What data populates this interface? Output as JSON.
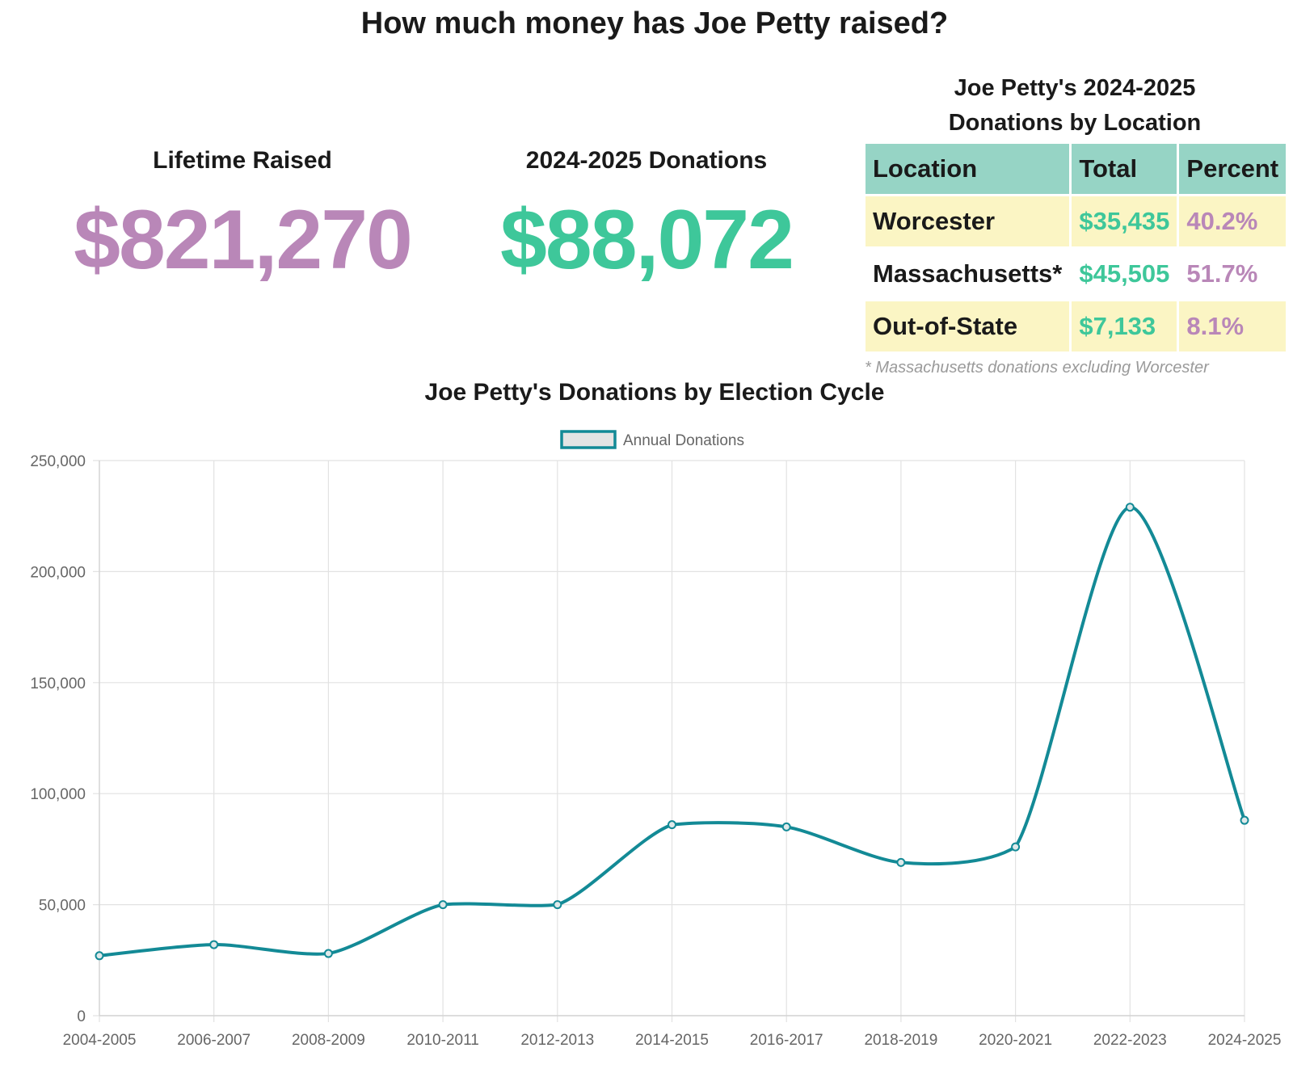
{
  "page": {
    "title": "How much money has Joe Petty raised?"
  },
  "lifetime": {
    "label": "Lifetime Raised",
    "value": "$821,270",
    "color": "#b987b8"
  },
  "current_cycle": {
    "label": "2024-2025 Donations",
    "value": "$88,072",
    "color": "#3ec79a"
  },
  "location_table": {
    "title_line1": "Joe Petty's 2024-2025",
    "title_line2": "Donations by Location",
    "headers": [
      "Location",
      "Total",
      "Percent"
    ],
    "rows": [
      {
        "location": "Worcester",
        "total": "$35,435",
        "percent": "40.2%"
      },
      {
        "location": "Massachusetts*",
        "total": "$45,505",
        "percent": "51.7%"
      },
      {
        "location": "Out-of-State",
        "total": "$7,133",
        "percent": "8.1%"
      }
    ],
    "footnote": "* Massachusetts donations excluding Worcester",
    "header_color": "#96d4c5",
    "row_shade_color": "#fbf5c4"
  },
  "chart_data": {
    "type": "line",
    "title": "Joe Petty's Donations by Election Cycle",
    "xlabel": "",
    "ylabel": "",
    "categories": [
      "2004-2005",
      "2006-2007",
      "2008-2009",
      "2010-2011",
      "2012-2013",
      "2014-2015",
      "2016-2017",
      "2018-2019",
      "2020-2021",
      "2022-2023",
      "2024-2025"
    ],
    "series": [
      {
        "name": "Annual Donations",
        "values": [
          27000,
          32000,
          28000,
          50000,
          50000,
          86000,
          85000,
          69000,
          76000,
          229000,
          88000
        ],
        "color": "#138a96"
      }
    ],
    "ylim": [
      0,
      250000
    ],
    "yticks": [
      0,
      50000,
      100000,
      150000,
      200000,
      250000
    ],
    "ytick_labels": [
      "0",
      "50,000",
      "100,000",
      "150,000",
      "200,000",
      "250,000"
    ],
    "grid": true,
    "legend": "top-center"
  }
}
